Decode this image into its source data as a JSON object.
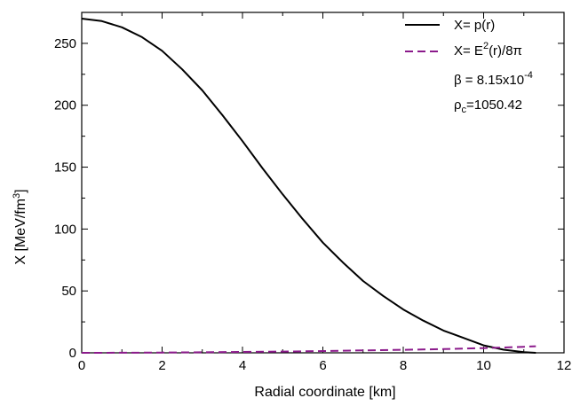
{
  "chart_data": {
    "type": "line",
    "xlabel": "Radial coordinate [km]",
    "ylabel_main": "X [MeV/fm",
    "ylabel_sup": "3",
    "ylabel_tail": "]",
    "xlim": [
      0,
      12
    ],
    "ylim": [
      0,
      275
    ],
    "x_ticks": [
      0,
      2,
      4,
      6,
      8,
      10,
      12
    ],
    "y_ticks": [
      0,
      50,
      100,
      150,
      200,
      250
    ],
    "grid": false,
    "legend_position": "top-right",
    "series": [
      {
        "name_main": "X= p(r)",
        "style": "solid",
        "color": "#000000",
        "x": [
          0,
          0.5,
          1,
          1.5,
          2,
          2.5,
          3,
          3.5,
          4,
          4.5,
          5,
          5.5,
          6,
          6.5,
          7,
          7.5,
          8,
          8.5,
          9,
          9.5,
          10,
          10.5,
          11,
          11.3
        ],
        "y": [
          270,
          268,
          263,
          255,
          244,
          229,
          212,
          192,
          171,
          149,
          128,
          108,
          89,
          73,
          58,
          46,
          35,
          26,
          18,
          12,
          6,
          2.5,
          0.5,
          0
        ]
      },
      {
        "name_main": "X= E",
        "name_sup": "2",
        "name_tail": "(r)/8π",
        "style": "dashed",
        "color": "#8b1a8b",
        "x": [
          0,
          1,
          2,
          3,
          4,
          5,
          6,
          7,
          8,
          9,
          10,
          10.5,
          11,
          11.3
        ],
        "y": [
          0,
          0.05,
          0.2,
          0.4,
          0.7,
          1.0,
          1.4,
          1.9,
          2.4,
          3.0,
          3.8,
          4.3,
          4.9,
          5.3
        ]
      }
    ],
    "annotations": {
      "beta_main": "β = 8.15x10",
      "beta_sup": "-4",
      "rho_main": "ρ",
      "rho_sub": "c",
      "rho_tail": "=1050.42"
    }
  }
}
